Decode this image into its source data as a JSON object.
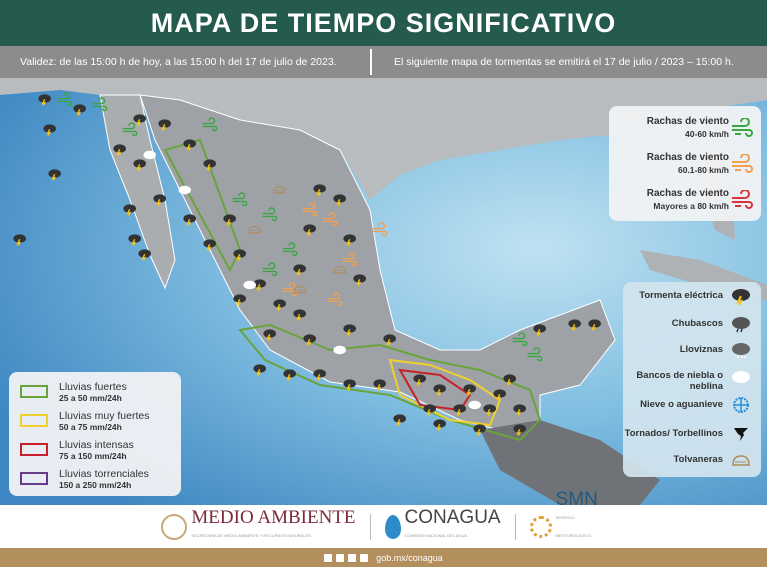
{
  "header": {
    "title": "MAPA DE TIEMPO SIGNIFICATIVO"
  },
  "subheader": {
    "validity": "Validez: de las 15:00 h de hoy, a las 15:00 h del 17 de julio de 2023.",
    "next_map": "El siguiente mapa de tormentas se emitirá el 17 de julio / 2023 – 15:00 h."
  },
  "wind_legend": [
    {
      "label": "Rachas de viento",
      "range": "40-60 km/h",
      "color": "#3aa543",
      "icon": "wind-icon"
    },
    {
      "label": "Rachas de viento",
      "range": "60.1-80 km/h",
      "color": "#f0a050",
      "icon": "wind-icon"
    },
    {
      "label": "Rachas de viento",
      "range": "Mayores a 80 km/h",
      "color": "#d8333a",
      "icon": "wind-icon"
    }
  ],
  "phenomena_legend": [
    {
      "label": "Tormenta eléctrica",
      "icon": "thunderstorm-icon"
    },
    {
      "label": "Chubascos",
      "icon": "showers-icon"
    },
    {
      "label": "Lloviznas",
      "icon": "drizzle-icon"
    },
    {
      "label": "Bancos de niebla o neblina",
      "icon": "fog-icon"
    },
    {
      "label": "Nieve o aguanieve",
      "icon": "snow-icon"
    },
    {
      "label": "Tornados/ Torbellinos",
      "icon": "tornado-icon"
    },
    {
      "label": "Tolvaneras",
      "icon": "dust-storm-icon"
    }
  ],
  "rain_legend": [
    {
      "label": "Lluvias fuertes",
      "range": "25 a 50 mm/24h",
      "color": "#6aa33c"
    },
    {
      "label": "Lluvias muy fuertes",
      "range": "50 a 75 mm/24h",
      "color": "#f0d030"
    },
    {
      "label": "Lluvias intensas",
      "range": "75 a 150 mm/24h",
      "color": "#c8202a"
    },
    {
      "label": "Lluvias torrenciales",
      "range": "150 a 250 mm/24h",
      "color": "#6a3a8a"
    }
  ],
  "footer": {
    "logos": [
      {
        "name": "MEDIO AMBIENTE",
        "sub": "SECRETARÍA DE MEDIO AMBIENTE Y RECURSOS NATURALES"
      },
      {
        "name": "CONAGUA",
        "sub": "COMISIÓN NACIONAL DEL AGUA"
      },
      {
        "name": "SMN",
        "sub": "SERVICIO METEOROLÓGICO NACIONAL"
      }
    ],
    "website": "gob.mx/conagua"
  }
}
